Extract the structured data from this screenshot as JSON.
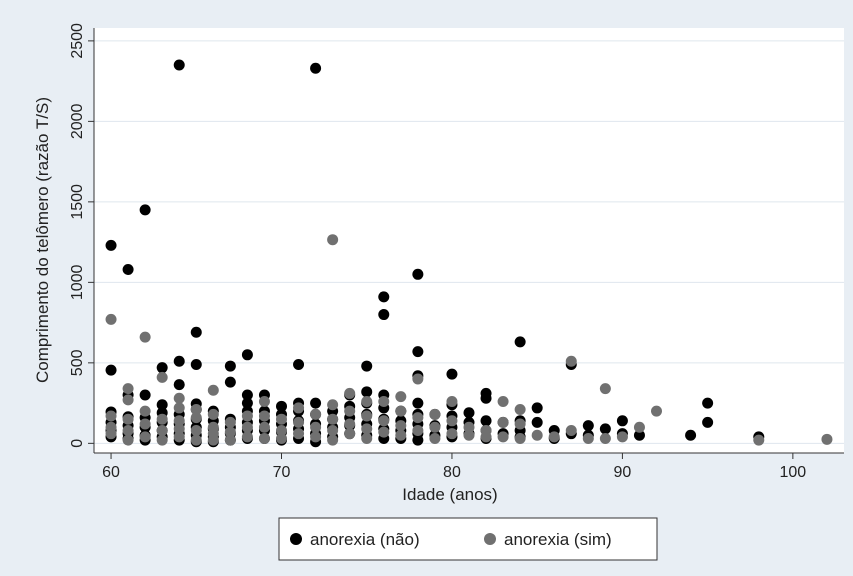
{
  "chart_data": {
    "type": "scatter",
    "xlabel": "Idade (anos)",
    "ylabel": "Comprimento do telômero (razão T/S)",
    "xlim": [
      59,
      103
    ],
    "ylim": [
      -60,
      2580
    ],
    "x_ticks": [
      60,
      70,
      80,
      90,
      100
    ],
    "y_ticks": [
      0,
      500,
      1000,
      1500,
      2000,
      2500
    ],
    "grid": "horizontal",
    "legend_position": "bottom",
    "background_color": "#e8eef4",
    "plot_color": "#ffffff",
    "series": [
      {
        "name": "anorexia (não)",
        "color": "#000000",
        "points": [
          [
            60,
            1230
          ],
          [
            60,
            455
          ],
          [
            60,
            195
          ],
          [
            60,
            130
          ],
          [
            60,
            80
          ],
          [
            60,
            40
          ],
          [
            61,
            1080
          ],
          [
            61,
            300
          ],
          [
            61,
            165
          ],
          [
            61,
            110
          ],
          [
            61,
            60
          ],
          [
            61,
            30
          ],
          [
            62,
            1450
          ],
          [
            62,
            300
          ],
          [
            62,
            160
          ],
          [
            62,
            100
          ],
          [
            62,
            50
          ],
          [
            62,
            20
          ],
          [
            63,
            470
          ],
          [
            63,
            240
          ],
          [
            63,
            190
          ],
          [
            63,
            130
          ],
          [
            63,
            80
          ],
          [
            63,
            40
          ],
          [
            64,
            2350
          ],
          [
            64,
            510
          ],
          [
            64,
            365
          ],
          [
            64,
            180
          ],
          [
            64,
            120
          ],
          [
            64,
            60
          ],
          [
            64,
            20
          ],
          [
            65,
            690
          ],
          [
            65,
            490
          ],
          [
            65,
            245
          ],
          [
            65,
            210
          ],
          [
            65,
            150
          ],
          [
            65,
            100
          ],
          [
            65,
            50
          ],
          [
            65,
            10
          ],
          [
            66,
            200
          ],
          [
            66,
            140
          ],
          [
            66,
            90
          ],
          [
            66,
            40
          ],
          [
            66,
            10
          ],
          [
            67,
            480
          ],
          [
            67,
            380
          ],
          [
            67,
            150
          ],
          [
            67,
            100
          ],
          [
            67,
            60
          ],
          [
            67,
            20
          ],
          [
            68,
            550
          ],
          [
            68,
            300
          ],
          [
            68,
            250
          ],
          [
            68,
            200
          ],
          [
            68,
            130
          ],
          [
            68,
            80
          ],
          [
            68,
            30
          ],
          [
            69,
            300
          ],
          [
            69,
            200
          ],
          [
            69,
            140
          ],
          [
            69,
            80
          ],
          [
            69,
            30
          ],
          [
            70,
            230
          ],
          [
            70,
            180
          ],
          [
            70,
            120
          ],
          [
            70,
            70
          ],
          [
            70,
            20
          ],
          [
            71,
            490
          ],
          [
            71,
            250
          ],
          [
            71,
            200
          ],
          [
            71,
            140
          ],
          [
            71,
            90
          ],
          [
            71,
            30
          ],
          [
            72,
            2330
          ],
          [
            72,
            250
          ],
          [
            72,
            180
          ],
          [
            72,
            120
          ],
          [
            72,
            60
          ],
          [
            72,
            10
          ],
          [
            73,
            200
          ],
          [
            73,
            150
          ],
          [
            73,
            100
          ],
          [
            73,
            40
          ],
          [
            74,
            300
          ],
          [
            74,
            230
          ],
          [
            74,
            160
          ],
          [
            74,
            110
          ],
          [
            74,
            60
          ],
          [
            75,
            480
          ],
          [
            75,
            320
          ],
          [
            75,
            250
          ],
          [
            75,
            180
          ],
          [
            75,
            120
          ],
          [
            75,
            50
          ],
          [
            76,
            910
          ],
          [
            76,
            800
          ],
          [
            76,
            300
          ],
          [
            76,
            220
          ],
          [
            76,
            150
          ],
          [
            76,
            90
          ],
          [
            76,
            30
          ],
          [
            77,
            200
          ],
          [
            77,
            140
          ],
          [
            77,
            80
          ],
          [
            77,
            30
          ],
          [
            78,
            1050
          ],
          [
            78,
            570
          ],
          [
            78,
            420
          ],
          [
            78,
            250
          ],
          [
            78,
            180
          ],
          [
            78,
            120
          ],
          [
            78,
            60
          ],
          [
            78,
            20
          ],
          [
            79,
            180
          ],
          [
            79,
            110
          ],
          [
            79,
            50
          ],
          [
            80,
            430
          ],
          [
            80,
            240
          ],
          [
            80,
            170
          ],
          [
            80,
            100
          ],
          [
            80,
            40
          ],
          [
            81,
            190
          ],
          [
            81,
            130
          ],
          [
            81,
            60
          ],
          [
            82,
            310
          ],
          [
            82,
            280
          ],
          [
            82,
            140
          ],
          [
            82,
            80
          ],
          [
            82,
            30
          ],
          [
            83,
            130
          ],
          [
            83,
            60
          ],
          [
            84,
            630
          ],
          [
            84,
            140
          ],
          [
            84,
            80
          ],
          [
            84,
            40
          ],
          [
            85,
            220
          ],
          [
            85,
            130
          ],
          [
            86,
            80
          ],
          [
            86,
            30
          ],
          [
            87,
            490
          ],
          [
            87,
            60
          ],
          [
            88,
            110
          ],
          [
            88,
            50
          ],
          [
            89,
            90
          ],
          [
            90,
            140
          ],
          [
            90,
            60
          ],
          [
            91,
            50
          ],
          [
            94,
            50
          ],
          [
            95,
            250
          ],
          [
            95,
            130
          ],
          [
            98,
            40
          ]
        ]
      },
      {
        "name": "anorexia (sim)",
        "color": "#707070",
        "points": [
          [
            60,
            770
          ],
          [
            60,
            170
          ],
          [
            60,
            100
          ],
          [
            60,
            60
          ],
          [
            61,
            340
          ],
          [
            61,
            270
          ],
          [
            61,
            150
          ],
          [
            61,
            80
          ],
          [
            61,
            20
          ],
          [
            62,
            660
          ],
          [
            62,
            200
          ],
          [
            62,
            120
          ],
          [
            62,
            40
          ],
          [
            63,
            410
          ],
          [
            63,
            150
          ],
          [
            63,
            80
          ],
          [
            63,
            20
          ],
          [
            64,
            280
          ],
          [
            64,
            220
          ],
          [
            64,
            140
          ],
          [
            64,
            90
          ],
          [
            64,
            40
          ],
          [
            65,
            210
          ],
          [
            65,
            160
          ],
          [
            65,
            80
          ],
          [
            65,
            20
          ],
          [
            66,
            330
          ],
          [
            66,
            180
          ],
          [
            66,
            100
          ],
          [
            66,
            60
          ],
          [
            66,
            20
          ],
          [
            67,
            130
          ],
          [
            67,
            70
          ],
          [
            67,
            20
          ],
          [
            68,
            170
          ],
          [
            68,
            100
          ],
          [
            68,
            40
          ],
          [
            69,
            260
          ],
          [
            69,
            170
          ],
          [
            69,
            100
          ],
          [
            69,
            30
          ],
          [
            70,
            150
          ],
          [
            70,
            80
          ],
          [
            70,
            30
          ],
          [
            71,
            220
          ],
          [
            71,
            130
          ],
          [
            71,
            60
          ],
          [
            72,
            180
          ],
          [
            72,
            100
          ],
          [
            72,
            40
          ],
          [
            73,
            1265
          ],
          [
            73,
            240
          ],
          [
            73,
            150
          ],
          [
            73,
            80
          ],
          [
            73,
            20
          ],
          [
            74,
            310
          ],
          [
            74,
            200
          ],
          [
            74,
            120
          ],
          [
            74,
            60
          ],
          [
            75,
            260
          ],
          [
            75,
            170
          ],
          [
            75,
            90
          ],
          [
            75,
            30
          ],
          [
            76,
            260
          ],
          [
            76,
            140
          ],
          [
            76,
            70
          ],
          [
            77,
            290
          ],
          [
            77,
            200
          ],
          [
            77,
            110
          ],
          [
            77,
            50
          ],
          [
            78,
            400
          ],
          [
            78,
            160
          ],
          [
            78,
            80
          ],
          [
            79,
            180
          ],
          [
            79,
            100
          ],
          [
            79,
            30
          ],
          [
            80,
            260
          ],
          [
            80,
            140
          ],
          [
            80,
            60
          ],
          [
            81,
            100
          ],
          [
            81,
            50
          ],
          [
            82,
            80
          ],
          [
            82,
            40
          ],
          [
            83,
            260
          ],
          [
            83,
            130
          ],
          [
            83,
            40
          ],
          [
            84,
            210
          ],
          [
            84,
            120
          ],
          [
            84,
            30
          ],
          [
            85,
            50
          ],
          [
            86,
            40
          ],
          [
            87,
            510
          ],
          [
            87,
            80
          ],
          [
            88,
            30
          ],
          [
            89,
            340
          ],
          [
            89,
            30
          ],
          [
            90,
            40
          ],
          [
            91,
            100
          ],
          [
            92,
            200
          ],
          [
            98,
            20
          ],
          [
            102,
            25
          ]
        ]
      }
    ]
  }
}
